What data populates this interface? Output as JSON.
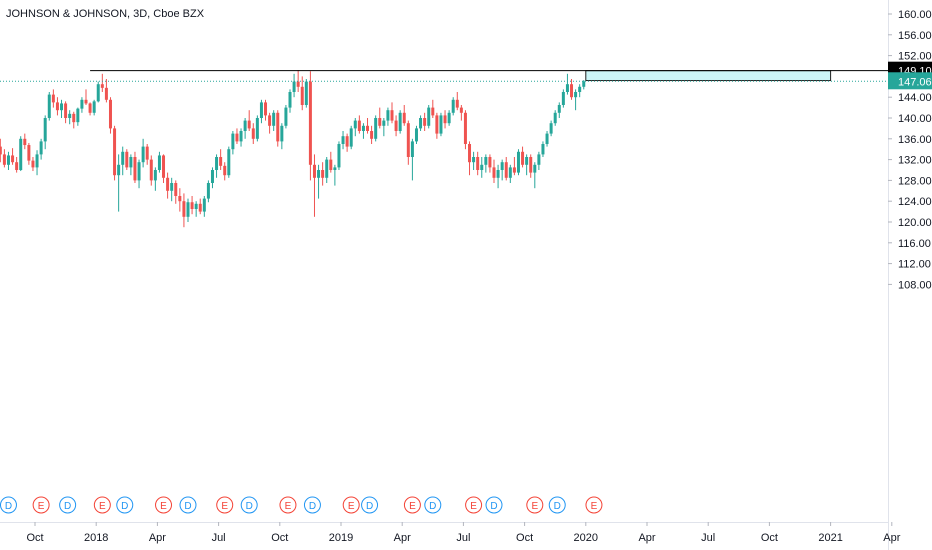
{
  "chart_data": {
    "type": "candlestick",
    "title": "JOHNSON & JOHNSON, 3D, Cboe BZX",
    "y_ticks": [
      "160.00",
      "156.00",
      "152.00",
      "148.00",
      "144.00",
      "140.00",
      "136.00",
      "132.00",
      "128.00",
      "124.00",
      "120.00",
      "116.00",
      "112.00",
      "108.00"
    ],
    "ylim": [
      105.6,
      162.4
    ],
    "x_ticks": [
      {
        "label": "Oct",
        "t": 0
      },
      {
        "label": "2018",
        "t": 3
      },
      {
        "label": "Apr",
        "t": 6
      },
      {
        "label": "Jul",
        "t": 9
      },
      {
        "label": "Oct",
        "t": 12
      },
      {
        "label": "2019",
        "t": 15
      },
      {
        "label": "Apr",
        "t": 18
      },
      {
        "label": "Jul",
        "t": 21
      },
      {
        "label": "Oct",
        "t": 24
      },
      {
        "label": "2020",
        "t": 27
      },
      {
        "label": "Apr",
        "t": 30
      },
      {
        "label": "Jul",
        "t": 33
      },
      {
        "label": "Oct",
        "t": 36
      },
      {
        "label": "2021",
        "t": 39
      },
      {
        "label": "Apr",
        "t": 42
      }
    ],
    "resistance_level": {
      "label": "149.10",
      "value": 149.1,
      "t_start": 2.7
    },
    "current_price": {
      "label": "147.06",
      "value": 147.06
    },
    "zone": {
      "top": 149.1,
      "bottom": 147.2,
      "t_start": 27.0,
      "t_end": 39.0
    },
    "events": [
      {
        "type": "D",
        "t": -1.3
      },
      {
        "type": "E",
        "t": 0.3
      },
      {
        "type": "D",
        "t": 1.6
      },
      {
        "type": "E",
        "t": 3.3
      },
      {
        "type": "D",
        "t": 4.4
      },
      {
        "type": "E",
        "t": 6.3
      },
      {
        "type": "D",
        "t": 7.5
      },
      {
        "type": "E",
        "t": 9.3
      },
      {
        "type": "D",
        "t": 10.5
      },
      {
        "type": "E",
        "t": 12.4
      },
      {
        "type": "D",
        "t": 13.6
      },
      {
        "type": "E",
        "t": 15.5
      },
      {
        "type": "D",
        "t": 16.4
      },
      {
        "type": "E",
        "t": 18.5
      },
      {
        "type": "D",
        "t": 19.5
      },
      {
        "type": "E",
        "t": 21.5
      },
      {
        "type": "D",
        "t": 22.5
      },
      {
        "type": "E",
        "t": 24.5
      },
      {
        "type": "D",
        "t": 25.6
      },
      {
        "type": "E",
        "t": 27.4
      }
    ],
    "candles": [
      [
        -1.7,
        134.5,
        136.0,
        131.5,
        133.0
      ],
      [
        -1.5,
        133.0,
        134.0,
        130.5,
        131.0
      ],
      [
        -1.3,
        131.0,
        133.5,
        130.0,
        132.8
      ],
      [
        -1.1,
        132.8,
        134.2,
        131.0,
        131.5
      ],
      [
        -0.9,
        131.5,
        132.5,
        129.5,
        130.0
      ],
      [
        -0.7,
        130.0,
        136.5,
        129.8,
        136.0
      ],
      [
        -0.5,
        136.0,
        137.0,
        134.0,
        134.8
      ],
      [
        -0.3,
        134.8,
        135.2,
        131.0,
        131.8
      ],
      [
        -0.1,
        131.8,
        132.5,
        129.8,
        130.5
      ],
      [
        0.1,
        130.5,
        133.8,
        129.0,
        133.0
      ],
      [
        0.3,
        133.0,
        136.0,
        132.0,
        135.5
      ],
      [
        0.5,
        135.5,
        140.5,
        134.0,
        140.0
      ],
      [
        0.7,
        140.0,
        145.0,
        139.5,
        144.5
      ],
      [
        0.9,
        144.5,
        145.5,
        142.0,
        143.0
      ],
      [
        1.1,
        143.0,
        144.0,
        140.5,
        141.5
      ],
      [
        1.3,
        141.5,
        143.5,
        140.0,
        142.8
      ],
      [
        1.5,
        142.8,
        143.2,
        139.0,
        140.0
      ],
      [
        1.7,
        140.0,
        141.5,
        138.8,
        140.8
      ],
      [
        1.9,
        140.8,
        141.2,
        138.0,
        139.2
      ],
      [
        2.1,
        139.2,
        142.0,
        138.5,
        141.8
      ],
      [
        2.3,
        141.8,
        144.0,
        141.0,
        143.5
      ],
      [
        2.5,
        143.5,
        145.5,
        142.5,
        142.8
      ],
      [
        2.7,
        142.8,
        143.0,
        140.5,
        141.0
      ],
      [
        2.9,
        141.0,
        143.5,
        140.5,
        143.2
      ],
      [
        3.1,
        143.2,
        147.0,
        143.0,
        146.5
      ],
      [
        3.3,
        146.5,
        148.5,
        145.0,
        145.8
      ],
      [
        3.5,
        145.8,
        147.5,
        143.0,
        143.5
      ],
      [
        3.7,
        143.5,
        144.0,
        137.0,
        138.0
      ],
      [
        3.9,
        138.0,
        138.5,
        128.0,
        129.0
      ],
      [
        4.1,
        129.0,
        133.0,
        122.0,
        131.0
      ],
      [
        4.3,
        131.0,
        134.5,
        129.0,
        133.5
      ],
      [
        4.5,
        133.5,
        134.0,
        130.0,
        130.5
      ],
      [
        4.7,
        130.5,
        133.0,
        129.0,
        132.5
      ],
      [
        4.9,
        132.5,
        133.5,
        127.5,
        128.0
      ],
      [
        5.1,
        128.0,
        132.0,
        126.5,
        131.5
      ],
      [
        5.3,
        131.5,
        136.0,
        130.5,
        134.5
      ],
      [
        5.5,
        134.5,
        135.0,
        131.0,
        132.0
      ],
      [
        5.7,
        132.0,
        132.8,
        127.0,
        128.0
      ],
      [
        5.9,
        128.0,
        130.5,
        126.0,
        130.0
      ],
      [
        6.1,
        130.0,
        133.5,
        129.5,
        132.8
      ],
      [
        6.3,
        132.8,
        133.0,
        127.5,
        128.5
      ],
      [
        6.5,
        128.5,
        129.5,
        124.5,
        126.0
      ],
      [
        6.7,
        126.0,
        128.5,
        124.0,
        127.5
      ],
      [
        6.9,
        127.5,
        128.0,
        123.5,
        125.0
      ],
      [
        7.1,
        125.0,
        126.5,
        122.0,
        124.0
      ],
      [
        7.3,
        124.0,
        125.5,
        119.0,
        121.0
      ],
      [
        7.5,
        121.0,
        124.5,
        120.0,
        123.8
      ],
      [
        7.7,
        123.8,
        125.0,
        121.5,
        122.5
      ],
      [
        7.9,
        122.5,
        124.0,
        121.0,
        123.5
      ],
      [
        8.1,
        123.5,
        124.5,
        121.5,
        122.0
      ],
      [
        8.3,
        122.0,
        125.0,
        121.0,
        124.5
      ],
      [
        8.5,
        124.5,
        128.0,
        123.8,
        127.5
      ],
      [
        8.7,
        127.5,
        130.5,
        126.5,
        130.0
      ],
      [
        8.9,
        130.0,
        133.0,
        128.5,
        132.5
      ],
      [
        9.1,
        132.5,
        134.0,
        130.0,
        130.8
      ],
      [
        9.3,
        130.8,
        131.5,
        128.0,
        129.0
      ],
      [
        9.5,
        129.0,
        134.5,
        128.5,
        134.0
      ],
      [
        9.7,
        134.0,
        137.5,
        133.0,
        137.0
      ],
      [
        9.9,
        137.0,
        138.0,
        135.0,
        135.5
      ],
      [
        10.1,
        135.5,
        138.0,
        134.5,
        137.5
      ],
      [
        10.3,
        137.5,
        140.0,
        136.0,
        139.5
      ],
      [
        10.5,
        139.5,
        141.5,
        137.5,
        138.0
      ],
      [
        10.7,
        138.0,
        139.0,
        135.0,
        136.0
      ],
      [
        10.9,
        136.0,
        140.5,
        135.5,
        140.0
      ],
      [
        11.1,
        140.0,
        143.5,
        139.0,
        143.0
      ],
      [
        11.3,
        143.0,
        143.5,
        139.5,
        140.5
      ],
      [
        11.5,
        140.5,
        141.0,
        137.0,
        138.5
      ],
      [
        11.7,
        138.5,
        141.5,
        137.5,
        141.0
      ],
      [
        11.9,
        141.0,
        141.5,
        134.5,
        135.5
      ],
      [
        12.1,
        135.5,
        139.0,
        134.0,
        138.5
      ],
      [
        12.3,
        138.5,
        142.5,
        138.0,
        142.0
      ],
      [
        12.5,
        142.0,
        145.5,
        141.0,
        145.0
      ],
      [
        12.7,
        145.0,
        148.5,
        144.0,
        147.0
      ],
      [
        12.9,
        147.0,
        149.2,
        145.0,
        146.0
      ],
      [
        13.1,
        146.0,
        148.0,
        141.5,
        142.5
      ],
      [
        13.3,
        142.5,
        147.5,
        142.0,
        147.0
      ],
      [
        13.5,
        147.0,
        149.0,
        128.0,
        131.0
      ],
      [
        13.7,
        131.0,
        133.0,
        121.0,
        128.5
      ],
      [
        13.9,
        128.5,
        131.0,
        124.5,
        130.0
      ],
      [
        14.1,
        130.0,
        131.5,
        127.0,
        128.5
      ],
      [
        14.3,
        128.5,
        132.5,
        127.5,
        132.0
      ],
      [
        14.5,
        132.0,
        133.5,
        129.5,
        130.0
      ],
      [
        14.7,
        130.0,
        131.0,
        127.0,
        130.5
      ],
      [
        14.9,
        130.5,
        135.5,
        130.0,
        135.0
      ],
      [
        15.1,
        135.0,
        137.5,
        134.0,
        136.5
      ],
      [
        15.3,
        136.5,
        137.0,
        133.5,
        134.5
      ],
      [
        15.5,
        134.5,
        138.5,
        134.0,
        138.0
      ],
      [
        15.7,
        138.0,
        140.0,
        136.5,
        139.5
      ],
      [
        15.9,
        139.5,
        140.5,
        137.0,
        137.5
      ],
      [
        16.1,
        137.5,
        139.0,
        136.0,
        138.5
      ],
      [
        16.3,
        138.5,
        140.0,
        137.0,
        137.5
      ],
      [
        16.5,
        137.5,
        138.5,
        135.0,
        136.0
      ],
      [
        16.7,
        136.0,
        140.5,
        135.5,
        140.0
      ],
      [
        16.9,
        140.0,
        142.0,
        138.0,
        138.5
      ],
      [
        17.1,
        138.5,
        140.0,
        136.5,
        139.5
      ],
      [
        17.3,
        139.5,
        142.0,
        138.5,
        141.5
      ],
      [
        17.5,
        141.5,
        143.0,
        139.0,
        139.5
      ],
      [
        17.7,
        139.5,
        140.5,
        136.5,
        137.5
      ],
      [
        17.9,
        137.5,
        141.5,
        137.0,
        141.0
      ],
      [
        18.1,
        141.0,
        142.5,
        138.5,
        139.0
      ],
      [
        18.3,
        139.0,
        139.5,
        131.0,
        132.5
      ],
      [
        18.5,
        132.5,
        136.0,
        128.0,
        135.5
      ],
      [
        18.7,
        135.5,
        138.5,
        135.0,
        138.0
      ],
      [
        18.9,
        138.0,
        140.5,
        137.5,
        140.0
      ],
      [
        19.1,
        140.0,
        141.0,
        137.5,
        138.5
      ],
      [
        19.3,
        138.5,
        142.5,
        138.0,
        142.0
      ],
      [
        19.5,
        142.0,
        143.5,
        140.0,
        140.5
      ],
      [
        19.7,
        140.5,
        141.0,
        136.0,
        137.0
      ],
      [
        19.9,
        137.0,
        141.0,
        136.5,
        140.5
      ],
      [
        20.1,
        140.5,
        141.5,
        138.0,
        139.0
      ],
      [
        20.3,
        139.0,
        141.5,
        138.5,
        141.0
      ],
      [
        20.5,
        141.0,
        144.0,
        140.5,
        143.5
      ],
      [
        20.7,
        143.5,
        145.0,
        141.5,
        142.0
      ],
      [
        20.9,
        142.0,
        142.5,
        139.5,
        141.0
      ],
      [
        21.1,
        141.0,
        141.5,
        134.0,
        135.0
      ],
      [
        21.3,
        135.0,
        135.5,
        129.0,
        131.5
      ],
      [
        21.5,
        131.5,
        133.5,
        130.0,
        132.5
      ],
      [
        21.7,
        132.5,
        133.5,
        129.0,
        130.0
      ],
      [
        21.9,
        130.0,
        132.5,
        128.5,
        131.0
      ],
      [
        22.1,
        131.0,
        133.0,
        129.5,
        132.5
      ],
      [
        22.3,
        132.5,
        133.0,
        129.5,
        130.5
      ],
      [
        22.5,
        130.5,
        132.0,
        127.5,
        128.5
      ],
      [
        22.7,
        128.5,
        131.0,
        126.5,
        130.0
      ],
      [
        22.9,
        130.0,
        132.0,
        128.0,
        131.5
      ],
      [
        23.1,
        131.5,
        132.5,
        128.0,
        128.5
      ],
      [
        23.3,
        128.5,
        131.0,
        127.5,
        130.5
      ],
      [
        23.5,
        130.5,
        132.5,
        129.0,
        129.5
      ],
      [
        23.7,
        129.5,
        134.0,
        129.0,
        133.5
      ],
      [
        23.9,
        133.5,
        134.5,
        130.5,
        131.0
      ],
      [
        24.1,
        131.0,
        133.0,
        129.0,
        132.5
      ],
      [
        24.3,
        132.5,
        133.0,
        128.5,
        129.5
      ],
      [
        24.5,
        129.5,
        131.5,
        126.5,
        131.0
      ],
      [
        24.7,
        131.0,
        133.5,
        130.0,
        133.0
      ],
      [
        24.9,
        133.0,
        135.5,
        132.5,
        135.0
      ],
      [
        25.1,
        135.0,
        137.5,
        134.5,
        137.0
      ],
      [
        25.3,
        137.0,
        139.5,
        136.5,
        139.0
      ],
      [
        25.5,
        139.0,
        141.5,
        138.5,
        141.0
      ],
      [
        25.7,
        141.0,
        143.0,
        140.0,
        142.5
      ],
      [
        25.9,
        142.5,
        145.5,
        142.0,
        145.0
      ],
      [
        26.1,
        145.0,
        148.5,
        144.5,
        146.5
      ],
      [
        26.3,
        146.5,
        147.5,
        143.5,
        144.0
      ],
      [
        26.5,
        144.0,
        145.5,
        141.5,
        145.0
      ],
      [
        26.7,
        145.0,
        146.5,
        144.0,
        146.0
      ],
      [
        26.9,
        146.0,
        147.3,
        145.5,
        147.06
      ]
    ]
  }
}
